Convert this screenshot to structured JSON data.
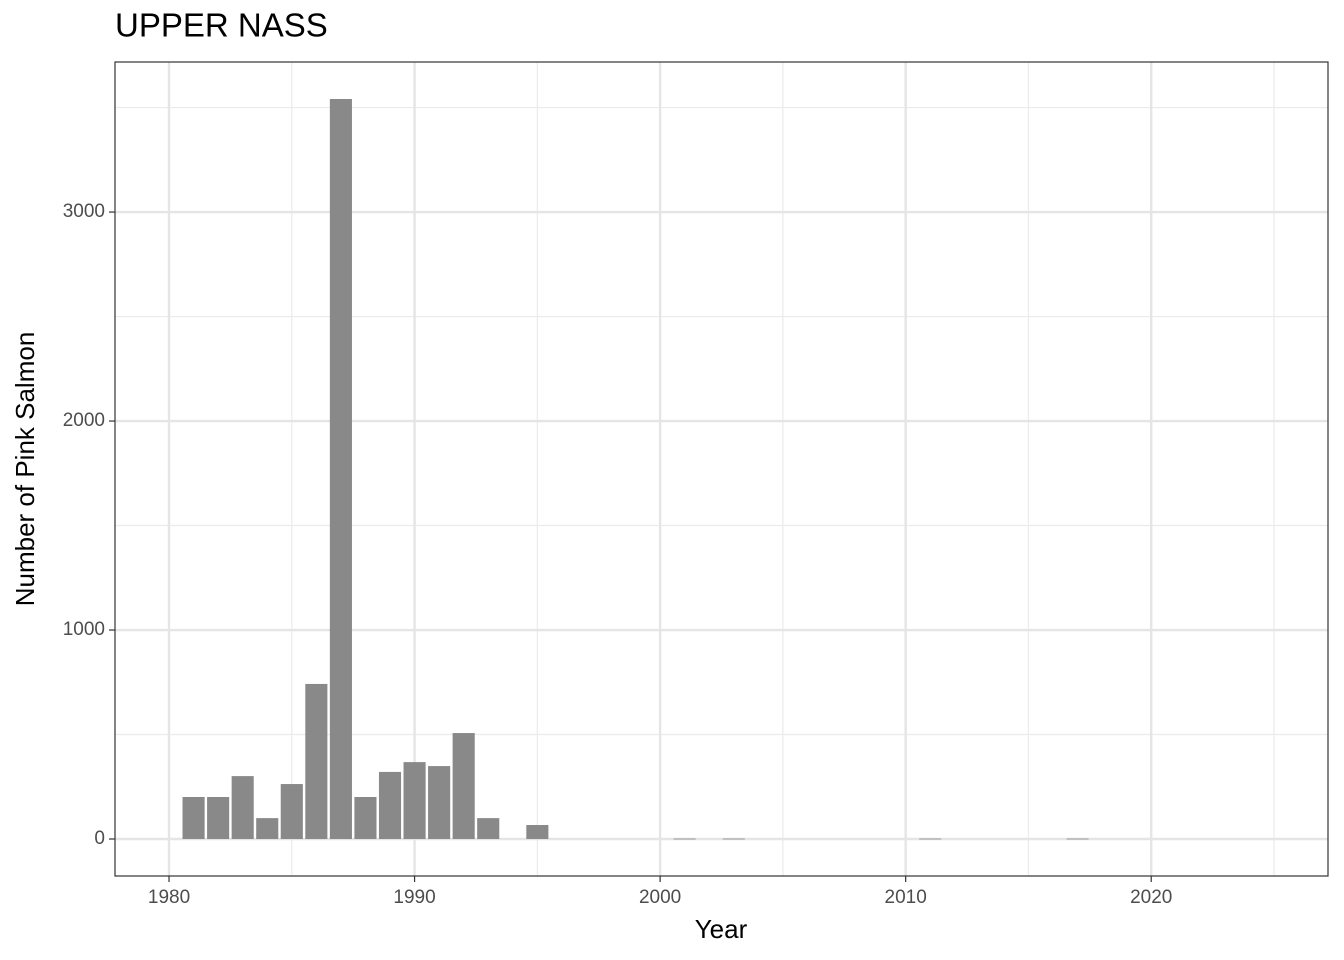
{
  "chart_data": {
    "type": "bar",
    "title": "UPPER NASS",
    "x_label": "Year",
    "y_label": "Number of Pink Salmon",
    "x": [
      1981,
      1982,
      1983,
      1984,
      1985,
      1986,
      1987,
      1988,
      1989,
      1990,
      1991,
      1992,
      1993,
      1995,
      2001,
      2003,
      2011,
      2017
    ],
    "values": [
      201,
      201,
      301,
      100,
      263,
      742,
      3541,
      201,
      321,
      368,
      349,
      507,
      100,
      67,
      2,
      2,
      2,
      2
    ],
    "color": "#898989",
    "xlim": [
      1977.8,
      2027.2
    ],
    "xticks": [
      1980,
      1990,
      2000,
      2010,
      2020
    ],
    "ylim": [
      -177,
      3718
    ],
    "yticks": [
      0,
      1000,
      2000,
      3000
    ],
    "grid": true
  }
}
